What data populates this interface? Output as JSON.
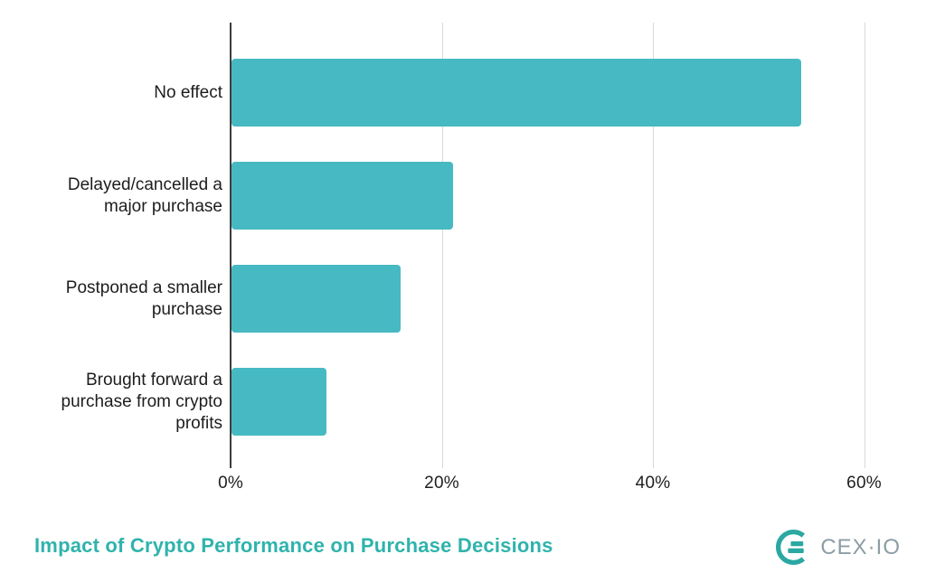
{
  "chart_data": {
    "type": "bar",
    "orientation": "horizontal",
    "title": "Impact of Crypto Performance on Purchase Decisions",
    "categories": [
      "No effect",
      "Delayed/cancelled a major purchase",
      "Postponed a smaller purchase",
      "Brought forward a purchase from crypto profits"
    ],
    "values": [
      54,
      21,
      16,
      9
    ],
    "unit": "%",
    "x_tick_labels": [
      "0%",
      "20%",
      "40%",
      "60%"
    ],
    "x_tick_values": [
      0,
      20,
      40,
      60
    ],
    "xlim": [
      0,
      64
    ],
    "grid": true,
    "legend": false,
    "bar_color": "#47b9c2",
    "axis_line_color": "#3d3d3d",
    "gridline_color": "#d9d9d9",
    "label_color": "#1d1d1d"
  },
  "title": {
    "text": "Impact of Crypto Performance on Purchase Decisions",
    "color": "#2fb3ac"
  },
  "branding": {
    "logo_text": "CEX·IO",
    "logo_mark": "cexio-c-mark",
    "logo_mark_color": "#2aa8a1",
    "logo_text_color": "#8c9da3"
  }
}
